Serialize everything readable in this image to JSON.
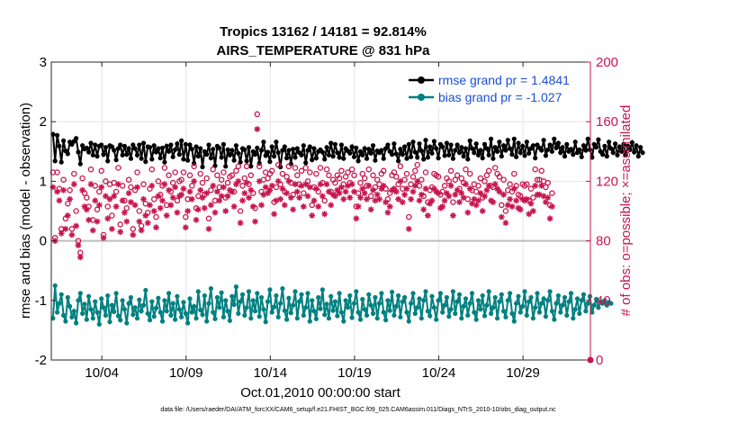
{
  "chart_data": {
    "type": "line",
    "title": "Tropics 13162 / 14181 = 92.814%",
    "subtitle": "AIRS_TEMPERATURE @ 831 hPa",
    "xlabel": "Oct.01,2010 00:00:00 start",
    "ylabel": "rmse and bias (model - observation)",
    "y2label": "# of obs: o=possible; ×=assimilated",
    "xlim": [
      1,
      33
    ],
    "ylim": [
      -2,
      3
    ],
    "y2lim": [
      0,
      200
    ],
    "x_ticks": [
      {
        "value": 4,
        "label": "10/04"
      },
      {
        "value": 9,
        "label": "10/09"
      },
      {
        "value": 14,
        "label": "10/14"
      },
      {
        "value": 19,
        "label": "10/19"
      },
      {
        "value": 24,
        "label": "10/24"
      },
      {
        "value": 29,
        "label": "10/29"
      }
    ],
    "y_ticks": [
      -2,
      -1,
      0,
      1,
      2,
      3
    ],
    "y2_ticks": [
      0,
      40,
      80,
      120,
      160,
      200
    ],
    "grid": true,
    "legend_position": "top-right",
    "series": [
      {
        "name": "rmse grand pr = 1.4841",
        "axis": "left",
        "color": "#000000",
        "marker": "dot",
        "values": [
          1.79,
          1.34,
          1.77,
          1.59,
          1.32,
          1.68,
          1.51,
          1.46,
          1.66,
          1.62,
          1.67,
          1.72,
          1.49,
          1.29,
          1.6,
          1.54,
          1.56,
          1.49,
          1.64,
          1.44,
          1.61,
          1.42,
          1.59,
          1.61,
          1.45,
          1.57,
          1.34,
          1.6,
          1.58,
          1.52,
          1.36,
          1.55,
          1.61,
          1.44,
          1.59,
          1.45,
          1.55,
          1.38,
          1.61,
          1.55,
          1.44,
          1.61,
          1.38,
          1.64,
          1.33,
          1.58,
          1.57,
          1.37,
          1.6,
          1.49,
          1.55,
          1.39,
          1.56,
          1.32,
          1.59,
          1.5,
          1.61,
          1.41,
          1.53,
          1.63,
          1.45,
          1.68,
          1.37,
          1.62,
          1.35,
          1.61,
          1.54,
          1.3,
          1.58,
          1.42,
          1.55,
          1.24,
          1.5,
          1.45,
          1.61,
          1.39,
          1.54,
          1.26,
          1.59,
          1.56,
          1.4,
          1.62,
          1.25,
          1.53,
          1.44,
          1.52,
          1.35,
          1.6,
          1.47,
          1.32,
          1.55,
          1.53,
          1.34,
          1.57,
          1.25,
          1.5,
          1.45,
          1.56,
          1.3,
          1.52,
          1.66,
          1.43,
          1.49,
          1.33,
          1.58,
          1.42,
          1.66,
          1.48,
          1.24,
          1.52,
          1.58,
          1.39,
          1.52,
          1.29,
          1.54,
          1.4,
          1.55,
          1.48,
          1.44,
          1.6,
          1.31,
          1.52,
          1.58,
          1.36,
          1.55,
          1.39,
          1.5,
          1.53,
          1.49,
          1.37,
          1.57,
          1.44,
          1.64,
          1.42,
          1.62,
          1.48,
          1.4,
          1.61,
          1.38,
          1.55,
          1.51,
          1.47,
          1.58,
          1.41,
          1.56,
          1.34,
          1.5,
          1.44,
          1.55,
          1.38,
          1.54,
          1.47,
          1.6,
          1.35,
          1.51,
          1.48,
          1.52,
          1.38,
          1.55,
          1.61,
          1.5,
          1.45,
          1.63,
          1.46,
          1.34,
          1.54,
          1.45,
          1.58,
          1.38,
          1.62,
          1.41,
          1.66,
          1.49,
          1.4,
          1.63,
          1.51,
          1.37,
          1.69,
          1.4,
          1.58,
          1.47,
          1.67,
          1.55,
          1.39,
          1.62,
          1.58,
          1.43,
          1.64,
          1.44,
          1.61,
          1.38,
          1.52,
          1.61,
          1.48,
          1.57,
          1.42,
          1.55,
          1.37,
          1.68,
          1.55,
          1.48,
          1.63,
          1.44,
          1.52,
          1.39,
          1.62,
          1.55,
          1.44,
          1.71,
          1.38,
          1.57,
          1.5,
          1.66,
          1.42,
          1.6,
          1.52,
          1.69,
          1.55,
          1.45,
          1.71,
          1.41,
          1.64,
          1.48,
          1.59,
          1.43,
          1.66,
          1.47,
          1.55,
          1.6,
          1.39,
          1.61,
          1.56,
          1.52,
          1.69,
          1.43,
          1.53,
          1.61,
          1.5,
          1.71,
          1.56,
          1.64,
          1.48,
          1.57,
          1.42,
          1.62,
          1.5,
          1.54,
          1.45,
          1.66,
          1.48,
          1.53,
          1.41,
          1.6,
          1.52,
          1.71,
          1.53,
          1.4,
          1.62,
          1.57,
          1.7,
          1.5,
          1.45,
          1.59,
          1.42,
          1.66,
          1.55,
          1.48,
          1.63,
          1.44,
          1.58,
          1.5,
          1.62,
          1.44,
          1.59,
          1.53,
          1.65,
          1.49,
          1.6,
          1.42,
          1.57,
          1.48
        ]
      },
      {
        "name": "bias grand pr = -1.027",
        "axis": "left",
        "color": "#008080",
        "marker": "dot",
        "values": [
          -1.3,
          -0.75,
          -1.2,
          -1.05,
          -0.9,
          -1.25,
          -1.35,
          -0.95,
          -1.1,
          -1.28,
          -1.18,
          -1.38,
          -1.0,
          -0.88,
          -1.22,
          -1.06,
          -1.32,
          -0.93,
          -1.15,
          -1.3,
          -1.02,
          -1.2,
          -1.4,
          -0.97,
          -1.12,
          -1.25,
          -0.92,
          -1.36,
          -1.08,
          -1.19,
          -0.88,
          -1.26,
          -1.33,
          -1.0,
          -1.15,
          -1.38,
          -1.05,
          -0.95,
          -1.24,
          -1.12,
          -1.3,
          -0.99,
          -1.18,
          -1.08,
          -0.83,
          -1.22,
          -1.33,
          -1.02,
          -1.27,
          -1.13,
          -0.96,
          -1.2,
          -1.35,
          -1.0,
          -1.18,
          -0.88,
          -1.25,
          -1.05,
          -1.32,
          -0.93,
          -1.15,
          -1.28,
          -1.03,
          -1.22,
          -1.38,
          -0.97,
          -1.2,
          -1.1,
          -1.3,
          -0.85,
          -1.16,
          -1.24,
          -0.92,
          -1.35,
          -1.05,
          -0.8,
          -1.2,
          -1.31,
          -0.95,
          -1.12,
          -0.87,
          -1.28,
          -1.0,
          -1.18,
          -1.34,
          -0.93,
          -1.07,
          -0.77,
          -1.22,
          -1.02,
          -0.9,
          -1.25,
          -1.12,
          -0.85,
          -1.3,
          -1.0,
          -1.18,
          -0.88,
          -1.27,
          -0.95,
          -1.15,
          -1.36,
          -1.02,
          -0.82,
          -1.2,
          -1.11,
          -0.92,
          -1.28,
          -1.05,
          -0.8,
          -1.17,
          -1.32,
          -0.96,
          -1.21,
          -1.08,
          -0.85,
          -1.3,
          -1.02,
          -0.9,
          -1.25,
          -1.12,
          -0.88,
          -1.35,
          -1.0,
          -1.18,
          -1.31,
          -0.95,
          -1.14,
          -0.82,
          -1.24,
          -1.06,
          -1.3,
          -0.93,
          -1.17,
          -1.02,
          -1.26,
          -0.88,
          -1.2,
          -1.35,
          -1.0,
          -1.12,
          -0.92,
          -1.29,
          -1.05,
          -0.85,
          -1.2,
          -1.32,
          -0.98,
          -1.15,
          -1.25,
          -0.9,
          -1.08,
          -1.22,
          -0.95,
          -1.3,
          -1.05,
          -0.88,
          -1.2,
          -1.33,
          -1.0,
          -1.17,
          -0.86,
          -1.25,
          -1.1,
          -0.92,
          -1.28,
          -1.02,
          -0.95,
          -1.2,
          -1.35,
          -1.05,
          -0.88,
          -1.22,
          -1.12,
          -0.97,
          -1.3,
          -1.0,
          -0.85,
          -1.18,
          -1.26,
          -0.93,
          -1.12,
          -1.32,
          -1.0,
          -0.88,
          -1.2,
          -1.08,
          -0.95,
          -1.27,
          -1.15,
          -0.85,
          -1.22,
          -1.02,
          -0.9,
          -1.3,
          -1.1,
          -0.97,
          -1.25,
          -1.05,
          -0.88,
          -1.2,
          -1.32,
          -1.0,
          -1.15,
          -0.92,
          -1.26,
          -1.08,
          -0.85,
          -1.22,
          -1.12,
          -0.95,
          -1.3,
          -1.02,
          -0.9,
          -1.18,
          -1.28,
          -1.0,
          -0.88,
          -1.22,
          -1.35,
          -1.05,
          -0.93,
          -1.2,
          -1.1,
          -0.85,
          -1.25,
          -1.02,
          -0.95,
          -1.3,
          -1.12,
          -0.88,
          -1.2,
          -1.05,
          -0.97,
          -1.27,
          -1.0,
          -0.85,
          -1.18,
          -1.32,
          -1.05,
          -0.92,
          -1.2,
          -1.08,
          -0.95,
          -1.25,
          -1.02,
          -0.88,
          -1.3,
          -1.15,
          -0.97,
          -1.22,
          -1.0,
          -0.9,
          -1.18,
          -1.05,
          -0.93,
          -1.2,
          -1.08,
          -0.98,
          -1.12,
          -1.02,
          -1.05,
          -1.0,
          -1.08,
          -1.03,
          -1.05
        ]
      },
      {
        "name": "# possible",
        "axis": "right",
        "color": "#c8164e",
        "marker": "o",
        "values": [
          126,
          82,
          126,
          115,
          88,
          121,
          95,
          105,
          114,
          88,
          125,
          100,
          80,
          72,
          122,
          112,
          109,
          103,
          128,
          94,
          117,
          101,
          113,
          127,
          84,
          120,
          103,
          118,
          97,
          119,
          113,
          129,
          91,
          117,
          107,
          102,
          121,
          116,
          88,
          114,
          126,
          100,
          90,
          118,
          105,
          99,
          115,
          128,
          108,
          96,
          120,
          111,
          117,
          129,
          104,
          124,
          113,
          119,
          126,
          107,
          120,
          121,
          126,
          96,
          108,
          124,
          117,
          130,
          102,
          110,
          125,
          119,
          111,
          122,
          95,
          114,
          128,
          107,
          124,
          116,
          121,
          126,
          109,
          119,
          123,
          124,
          113,
          127,
          130,
          100,
          117,
          122,
          130,
          118,
          124,
          112,
          102,
          165,
          130,
          113,
          121,
          126,
          122,
          125,
          127,
          106,
          116,
          131,
          118,
          125,
          113,
          123,
          130,
          119,
          111,
          129,
          124,
          118,
          127,
          112,
          129,
          120,
          126,
          104,
          116,
          125,
          113,
          129,
          119,
          107,
          128,
          124,
          113,
          121,
          119,
          124,
          122,
          127,
          118,
          123,
          126,
          119,
          128,
          124,
          103,
          112,
          119,
          125,
          122,
          117,
          128,
          110,
          124,
          116,
          121,
          118,
          125,
          127,
          115,
          108,
          112,
          124,
          126,
          123,
          118,
          130,
          115,
          121,
          125,
          96,
          118,
          123,
          127,
          131,
          117,
          121,
          110,
          126,
          106,
          114,
          116,
          125,
          124,
          123,
          111,
          113,
          117,
          122,
          120,
          127,
          106,
          121,
          124,
          115,
          122,
          119,
          128,
          108,
          125,
          114,
          118,
          113,
          117,
          122,
          109,
          120,
          124,
          127,
          117,
          116,
          129,
          125,
          123,
          104,
          121,
          100,
          114,
          118,
          113,
          125,
          117,
          111,
          110,
          118,
          117,
          118,
          107,
          115,
          109,
          128,
          121,
          121,
          127,
          120,
          116,
          119,
          104,
          112
        ]
      },
      {
        "name": "# assimilated",
        "axis": "right",
        "color": "#c8164e",
        "marker": "*",
        "values": [
          116,
          80,
          113,
          107,
          85,
          114,
          88,
          97,
          108,
          84,
          118,
          90,
          77,
          69,
          114,
          103,
          101,
          94,
          118,
          87,
          107,
          93,
          104,
          116,
          82,
          110,
          95,
          108,
          88,
          110,
          103,
          118,
          86,
          107,
          99,
          93,
          112,
          106,
          84,
          104,
          116,
          93,
          87,
          108,
          97,
          92,
          104,
          117,
          100,
          89,
          110,
          102,
          107,
          118,
          97,
          114,
          104,
          109,
          116,
          99,
          110,
          111,
          115,
          89,
          100,
          113,
          108,
          120,
          94,
          101,
          114,
          109,
          102,
          112,
          88,
          104,
          117,
          99,
          113,
          107,
          110,
          116,
          100,
          110,
          114,
          113,
          103,
          118,
          120,
          92,
          107,
          112,
          119,
          109,
          114,
          103,
          93,
          155,
          120,
          104,
          111,
          116,
          112,
          114,
          117,
          98,
          107,
          120,
          108,
          115,
          104,
          112,
          120,
          109,
          101,
          118,
          113,
          109,
          117,
          103,
          118,
          110,
          116,
          97,
          107,
          115,
          103,
          118,
          110,
          98,
          118,
          113,
          104,
          111,
          110,
          114,
          112,
          116,
          108,
          113,
          117,
          109,
          118,
          113,
          95,
          103,
          109,
          115,
          112,
          108,
          117,
          101,
          114,
          107,
          111,
          108,
          115,
          117,
          106,
          99,
          103,
          114,
          115,
          113,
          108,
          120,
          106,
          111,
          115,
          88,
          108,
          113,
          117,
          120,
          107,
          111,
          101,
          115,
          97,
          105,
          107,
          115,
          113,
          112,
          102,
          103,
          107,
          112,
          110,
          117,
          97,
          111,
          114,
          106,
          112,
          109,
          118,
          99,
          115,
          105,
          108,
          104,
          107,
          112,
          100,
          110,
          114,
          117,
          107,
          106,
          118,
          115,
          113,
          96,
          111,
          92,
          104,
          108,
          103,
          115,
          107,
          102,
          101,
          108,
          107,
          108,
          98,
          105,
          100,
          117,
          111,
          111,
          117,
          110,
          106,
          109,
          95,
          103
        ]
      }
    ],
    "footnote": "data file: /Users/raeder/DAI/ATM_forcXX/CAM6_setup/f.e21.FHIST_BGC.f09_025.CAM6assim.011/Diags_NTrS_2010-10/obs_diag_output.nc"
  }
}
